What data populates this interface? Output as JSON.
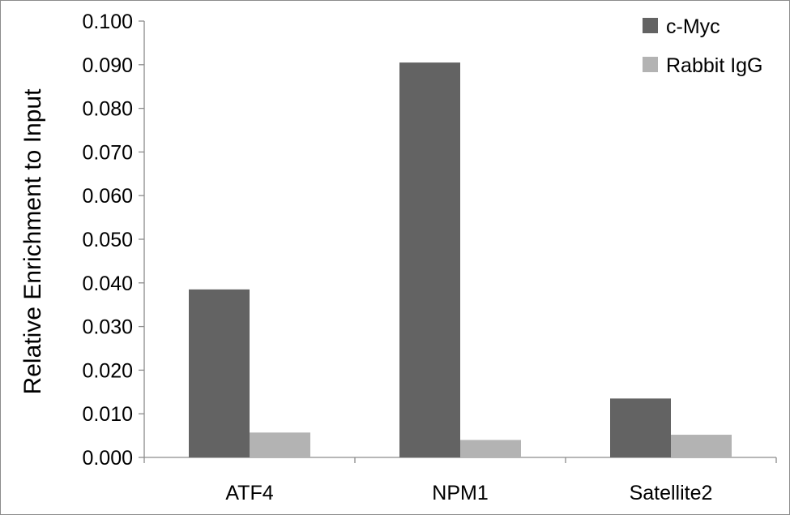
{
  "chart_data": {
    "type": "bar",
    "title": "",
    "xlabel": "",
    "ylabel": "Relative Enrichment to Input",
    "categories": [
      "ATF4",
      "NPM1",
      "Satellite2"
    ],
    "series": [
      {
        "name": "c-Myc",
        "color": "#636363",
        "values": [
          0.0385,
          0.0905,
          0.0135
        ]
      },
      {
        "name": "Rabbit IgG",
        "color": "#b3b3b3",
        "values": [
          0.0057,
          0.004,
          0.0052
        ]
      }
    ],
    "ylim": [
      0,
      0.1
    ],
    "yticks": [
      "0.000",
      "0.010",
      "0.020",
      "0.030",
      "0.040",
      "0.050",
      "0.060",
      "0.070",
      "0.080",
      "0.090",
      "0.100"
    ],
    "grid": false,
    "legend_position": "top-right"
  }
}
